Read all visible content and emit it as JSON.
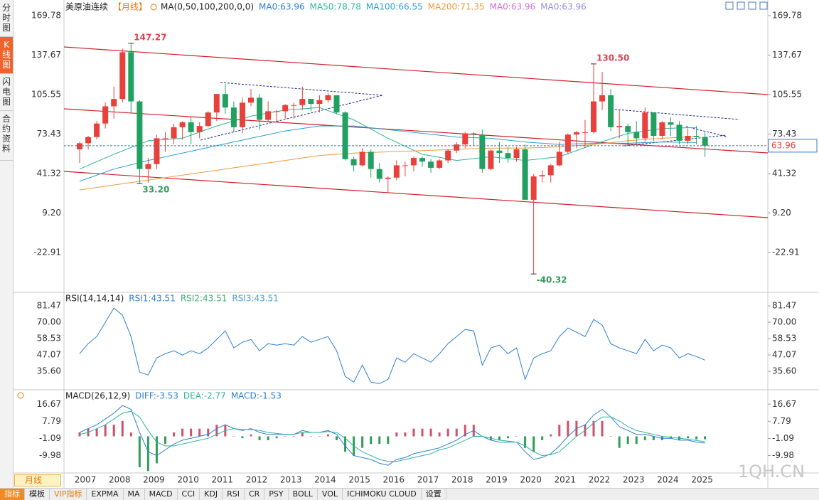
{
  "sidebar": [
    "分时图",
    "K线图",
    "闪电图",
    "合约资料"
  ],
  "period_button": "月线",
  "tabs": [
    "指标",
    "模板",
    "VIP指标",
    "EXPMA",
    "MA",
    "MACD",
    "CCI",
    "KDJ",
    "RSI",
    "CR",
    "PSY",
    "BOLL",
    "VOL",
    "ICHIMOKU CLOUD",
    "设置"
  ],
  "watermark": "1QH.CN",
  "chart_data": [
    {
      "type": "candlestick",
      "title": "美原油连续",
      "period": "【月线】",
      "indicator": "MA(0,50,100,200,0,0)",
      "categories": [
        "2007",
        null,
        null,
        null,
        "2008",
        null,
        null,
        null,
        "2009",
        null,
        null,
        null,
        "2010",
        null,
        null,
        null,
        "2011",
        null,
        null,
        null,
        "2012",
        null,
        null,
        null,
        "2013",
        null,
        null,
        null,
        "2014",
        null,
        null,
        null,
        "2015",
        null,
        null,
        null,
        "2016",
        null,
        null,
        null,
        "2017",
        null,
        null,
        null,
        "2018",
        null,
        null,
        null,
        "2019",
        null,
        null,
        null,
        "2020",
        null,
        null,
        null,
        "2021",
        null,
        null,
        null,
        "2022",
        null,
        null,
        null,
        "2023",
        null,
        null,
        null,
        "2024",
        null,
        null,
        null,
        "2025",
        null
      ],
      "open": [
        61,
        66,
        71,
        82,
        96,
        102,
        140,
        100,
        45,
        49,
        70,
        70,
        79,
        83,
        75,
        80,
        91,
        106,
        95,
        79,
        99,
        103,
        85,
        92,
        92,
        97,
        97,
        102,
        98,
        101,
        105,
        91,
        53,
        48,
        59,
        45,
        37,
        38,
        48,
        48,
        54,
        51,
        46,
        52,
        60,
        65,
        74,
        73,
        45,
        60,
        58,
        54,
        61,
        20,
        39,
        40,
        48,
        59,
        73,
        75,
        75,
        100,
        105,
        79,
        80,
        75,
        70,
        91,
        72,
        83,
        81,
        68,
        72,
        71
      ],
      "high": [
        67,
        72,
        84,
        99,
        112,
        143,
        147.27,
        101,
        54,
        73,
        75,
        82,
        84,
        87,
        83,
        92,
        106,
        114,
        100,
        103,
        110,
        106,
        100,
        93,
        98,
        99,
        112,
        102,
        105,
        107,
        105,
        92,
        55,
        62,
        61,
        50,
        39,
        52,
        51,
        55,
        55,
        53,
        53,
        61,
        67,
        75,
        75,
        77,
        61,
        67,
        63,
        63,
        65,
        41,
        44,
        49,
        67,
        74,
        76,
        85,
        130.5,
        124,
        110,
        93,
        82,
        84,
        95,
        91,
        84,
        87,
        84,
        78,
        80,
        75
      ],
      "low": [
        50,
        61,
        69,
        78,
        86,
        99,
        90,
        33.2,
        34,
        45,
        59,
        65,
        69,
        65,
        70,
        79,
        84,
        90,
        75,
        74,
        96,
        77,
        83,
        84,
        86,
        86,
        93,
        92,
        91,
        99,
        90,
        52,
        43,
        47,
        38,
        34,
        26,
        36,
        39,
        43,
        47,
        42,
        45,
        50,
        58,
        62,
        64,
        42,
        44,
        50,
        50,
        51,
        20,
        -40.32,
        34,
        34,
        47,
        57,
        62,
        62,
        74,
        93,
        76,
        70,
        64,
        64,
        67,
        68,
        69,
        72,
        65,
        65,
        65,
        55
      ],
      "close": [
        66,
        71,
        82,
        96,
        102,
        140,
        100,
        45,
        49,
        70,
        70,
        79,
        83,
        75,
        80,
        91,
        106,
        95,
        79,
        99,
        103,
        85,
        92,
        92,
        97,
        97,
        102,
        98,
        101,
        105,
        91,
        53,
        48,
        59,
        45,
        37,
        38,
        48,
        48,
        54,
        51,
        46,
        52,
        60,
        65,
        74,
        73,
        45,
        60,
        58,
        54,
        61,
        20,
        39,
        40,
        48,
        59,
        73,
        75,
        75,
        100,
        105,
        79,
        80,
        75,
        70,
        91,
        72,
        83,
        81,
        68,
        72,
        71,
        63.96
      ],
      "up_color": "#e8403a",
      "down_color": "#22a060",
      "last_color": "#2b7fd4",
      "ma_series": [
        {
          "name": "MA0:63.96",
          "color": "#2b7fd4"
        },
        {
          "name": "MA50:78.78",
          "color": "#2fb59a",
          "x": [
            2007,
            2008,
            2009,
            2010,
            2011,
            2012,
            2013,
            2014,
            2015,
            2016,
            2017,
            2018,
            2019,
            2020,
            2021,
            2022,
            2023,
            2024,
            2025
          ],
          "values": [
            45,
            57,
            68,
            70,
            80,
            88,
            93,
            95,
            85,
            70,
            57,
            52,
            55,
            52,
            55,
            65,
            74,
            78,
            78.78
          ]
        },
        {
          "name": "MA100:66.55",
          "color": "#2a9fd0",
          "x": [
            2007,
            2008,
            2009,
            2010,
            2011,
            2012,
            2013,
            2014,
            2015,
            2016,
            2017,
            2018,
            2019,
            2020,
            2021,
            2022,
            2023,
            2024,
            2025
          ],
          "values": [
            35,
            45,
            52,
            58,
            64,
            70,
            76,
            80,
            80,
            77,
            74,
            71,
            70,
            67,
            65,
            66,
            66,
            67,
            66.55
          ]
        },
        {
          "name": "MA200:71.35",
          "color": "#f09a3a",
          "x": [
            2007,
            2008,
            2009,
            2010,
            2011,
            2012,
            2013,
            2014,
            2015,
            2016,
            2017,
            2018,
            2019,
            2020,
            2021,
            2022,
            2023,
            2024,
            2025
          ],
          "values": [
            28,
            32,
            36,
            40,
            44,
            48,
            52,
            56,
            58,
            59,
            60,
            61,
            62,
            62,
            63,
            65,
            68,
            70,
            71.35
          ]
        },
        {
          "name": "MA0:63.96",
          "color": "#d070d8"
        },
        {
          "name": "MA0:63.96",
          "color": "#9a8ae0"
        }
      ],
      "annotations": [
        {
          "value": 147.27,
          "label": "147.27"
        },
        {
          "value": 33.2,
          "label": "33.20"
        },
        {
          "value": 130.5,
          "label": "130.50"
        },
        {
          "value": -40.32,
          "label": "-40.32"
        }
      ],
      "ylim": [
        -54.7,
        173.8
      ],
      "yticks": [
        169.78,
        137.67,
        105.55,
        73.43,
        41.32,
        {
          "value": 9.2,
          "label": "9.20"
        },
        -22.91
      ]
    },
    {
      "type": "line",
      "title": "RSI(14,14,14)",
      "series": [
        {
          "name": "RSI1:43.51",
          "color": "#2b7fd4",
          "values": [
            48,
            55,
            60,
            70,
            80,
            75,
            60,
            35,
            33,
            45,
            48,
            50,
            47,
            50,
            48,
            52,
            58,
            64,
            52,
            56,
            58,
            50,
            55,
            54,
            55,
            54,
            60,
            56,
            58,
            60,
            50,
            32,
            28,
            40,
            28,
            27,
            30,
            45,
            42,
            48,
            45,
            42,
            48,
            55,
            60,
            65,
            64,
            40,
            52,
            54,
            48,
            52,
            30,
            45,
            48,
            50,
            60,
            66,
            63,
            60,
            72,
            68,
            55,
            52,
            50,
            48,
            58,
            50,
            54,
            52,
            45,
            48,
            46,
            43.51
          ]
        },
        {
          "name": "RSI2:43.51",
          "color": "#3cb371"
        },
        {
          "name": "RSI3:43.51",
          "color": "#4aa0d8"
        }
      ],
      "ylim": [
        23.2,
        90.0
      ],
      "yticks": [
        81.47,
        {
          "value": 70,
          "label": "70.00"
        },
        58.53,
        47.07,
        {
          "value": 35.6,
          "label": "35.60"
        }
      ]
    },
    {
      "type": "macd",
      "title": "MACD(26,12,9)",
      "series": [
        {
          "name": "DIFF:-3.53",
          "color": "#2b7fd4",
          "type": "line",
          "values": [
            2,
            4,
            6,
            9,
            12,
            16,
            14,
            2,
            -8,
            -10,
            -7,
            -4,
            -2,
            -1,
            0,
            1,
            4,
            6,
            4,
            3,
            4,
            2,
            1,
            1,
            1,
            1,
            3,
            2,
            2,
            3,
            1,
            -5,
            -10,
            -11,
            -12,
            -14,
            -15,
            -12,
            -11,
            -9,
            -8,
            -7,
            -6,
            -4,
            -2,
            1,
            3,
            0,
            -2,
            -3,
            -3,
            -3,
            -8,
            -12,
            -11,
            -9,
            -5,
            0,
            4,
            6,
            11,
            14,
            10,
            5,
            3,
            1,
            1,
            0,
            -1,
            -1,
            -2,
            -2,
            -3,
            -3.53
          ]
        },
        {
          "name": "DEA:-2.77",
          "color": "#2fb59a",
          "type": "line",
          "values": [
            1,
            2,
            4,
            6,
            9,
            12,
            13,
            10,
            3,
            -3,
            -5,
            -5,
            -4,
            -3,
            -2,
            -1,
            1,
            3,
            4,
            3.5,
            3.5,
            3,
            2,
            1.5,
            1,
            1,
            2,
            2,
            2,
            2.5,
            2,
            -1,
            -5,
            -8,
            -10,
            -12,
            -13,
            -13,
            -12,
            -11,
            -10,
            -9,
            -7,
            -6,
            -4,
            -2,
            0,
            0,
            -1,
            -2,
            -2.5,
            -3,
            -5,
            -8,
            -10,
            -9.5,
            -8,
            -4,
            0,
            3,
            7,
            10,
            10,
            8,
            5,
            3,
            2,
            1,
            0,
            -0.5,
            -1,
            -1.5,
            -2.2,
            -2.77
          ]
        },
        {
          "name": "MACD:-1.53",
          "color": "#2b7fd4",
          "type": "bar",
          "up_color": "#d0506a",
          "down_color": "#2e9e58",
          "values": [
            2,
            4,
            4,
            6,
            6,
            8,
            2,
            -16,
            -18,
            -14,
            -4,
            2,
            4,
            4,
            4,
            4,
            6,
            6,
            0,
            -1,
            1,
            -2,
            -2,
            -1,
            0,
            0,
            2,
            0,
            0,
            1,
            -2,
            -8,
            -10,
            -6,
            -4,
            -4,
            -4,
            2,
            2,
            4,
            4,
            4,
            2,
            4,
            4,
            6,
            6,
            0,
            -2,
            -2,
            -1,
            0,
            -6,
            -8,
            -2,
            1,
            6,
            8,
            8,
            6,
            8,
            8,
            0,
            -6,
            -4,
            -4,
            -2,
            -2,
            -2,
            -1,
            -2,
            -1,
            -1.6,
            -1.53
          ]
        }
      ],
      "ylim": [
        -19.0,
        23.4
      ],
      "yticks": [
        16.67,
        7.79,
        -1.09,
        -9.98
      ]
    }
  ]
}
